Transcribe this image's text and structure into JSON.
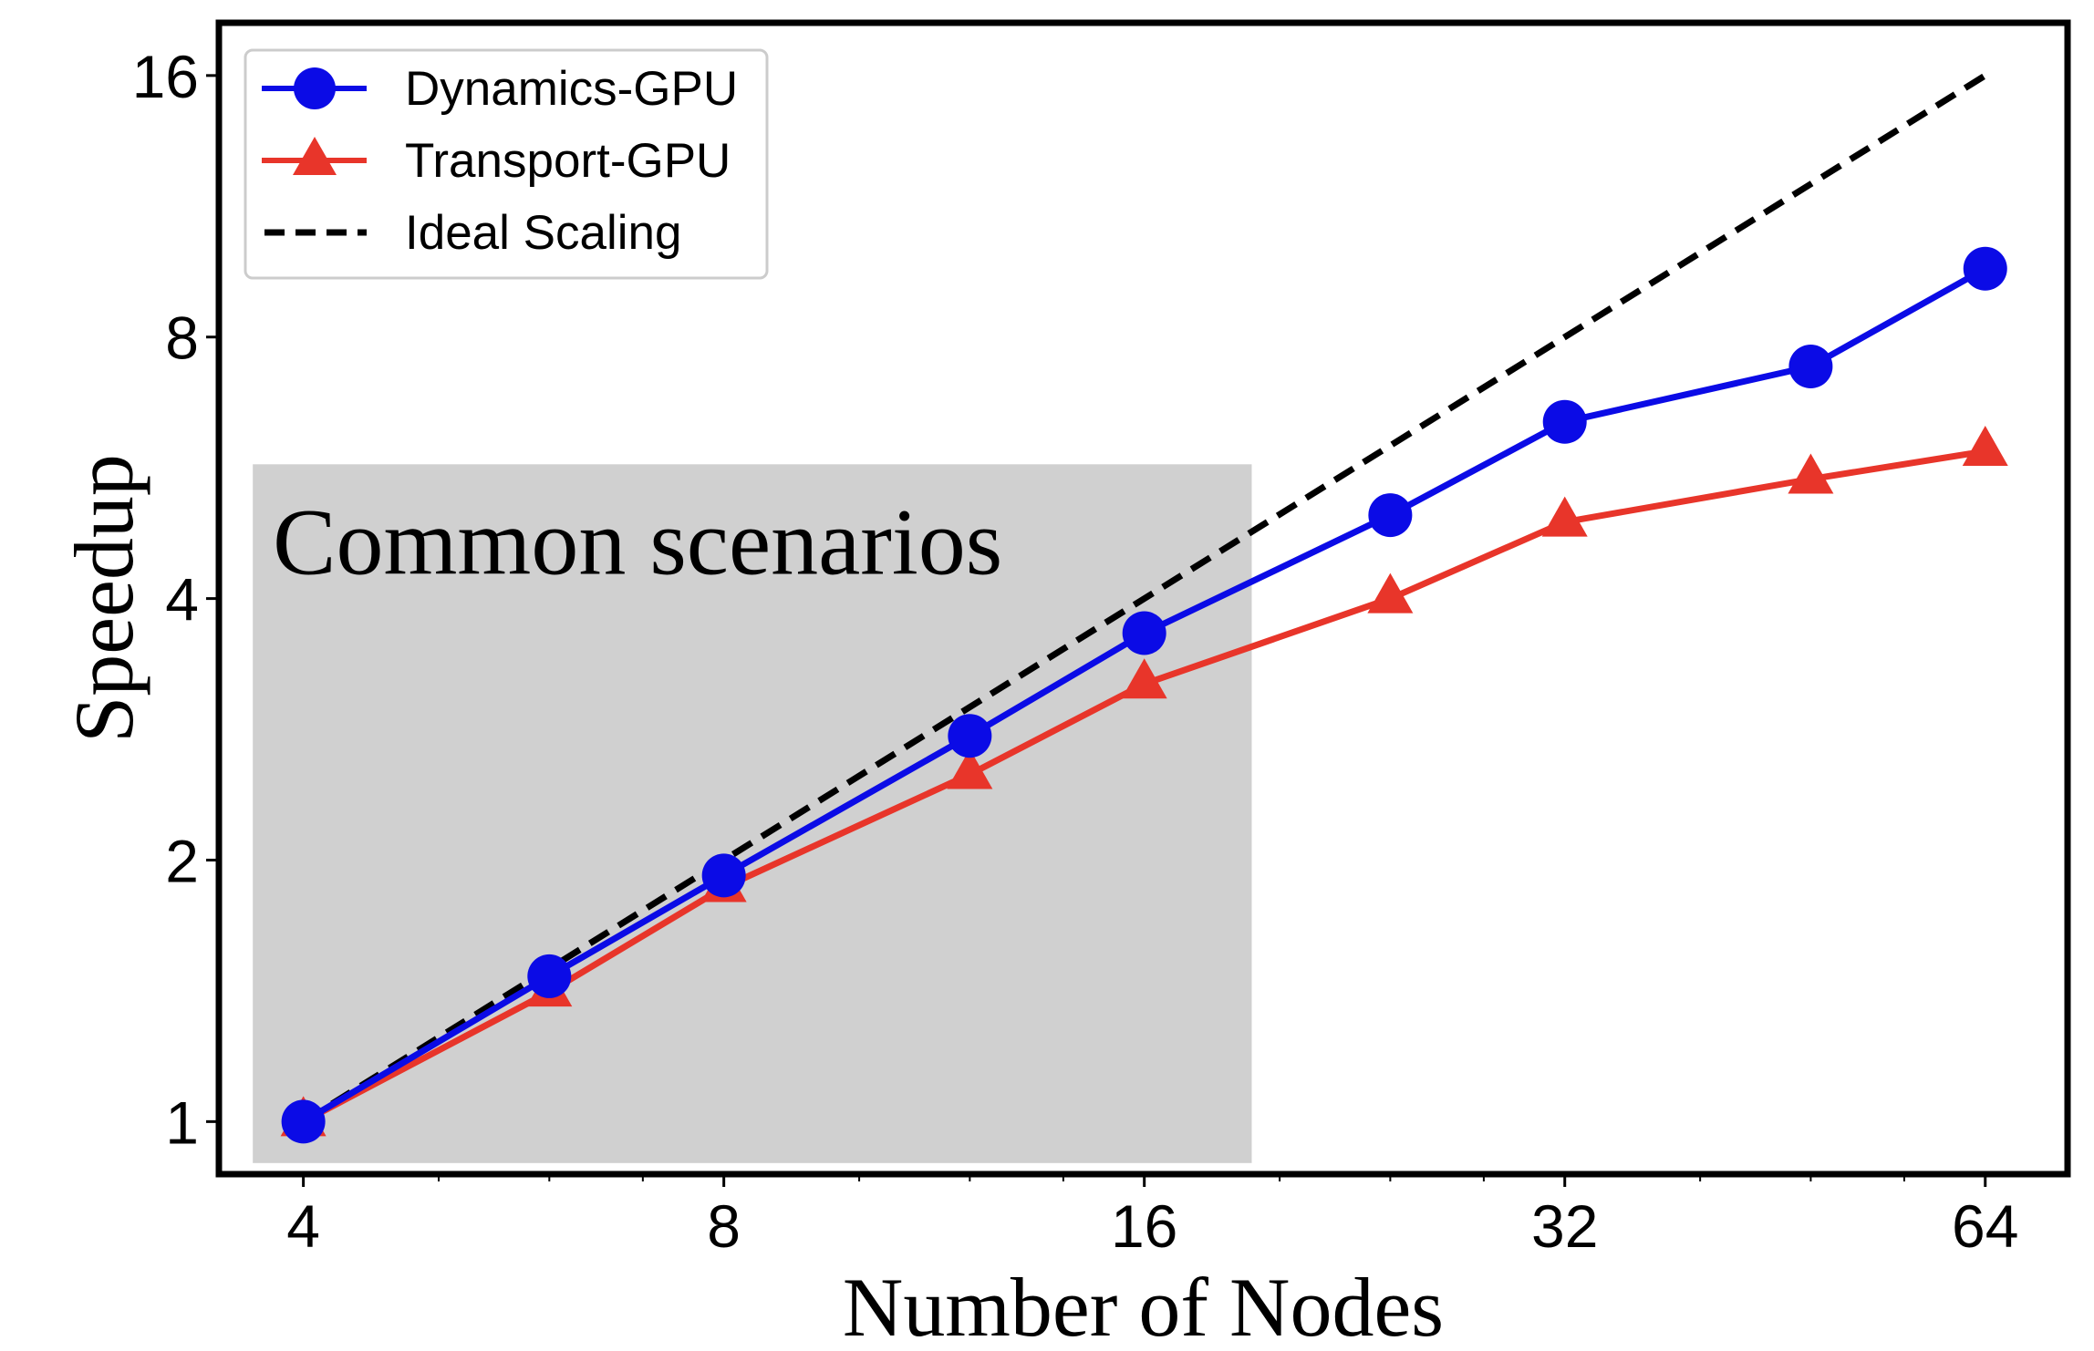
{
  "chart_data": {
    "type": "line",
    "xscale": "log2",
    "yscale": "log2",
    "xlabel": "Number of Nodes",
    "ylabel": "Speedup",
    "xlim": [
      3.48,
      73.3
    ],
    "ylim": [
      0.87,
      18.4
    ],
    "xticks": [
      4,
      8,
      16,
      32,
      64
    ],
    "xtick_labels": [
      "4",
      "8",
      "16",
      "32",
      "64"
    ],
    "yticks": [
      1,
      2,
      4,
      8,
      16
    ],
    "ytick_labels": [
      "1",
      "2",
      "4",
      "8",
      "16"
    ],
    "grid": false,
    "legend_position": "top-left",
    "x": [
      4,
      6,
      8,
      12,
      16,
      24,
      32,
      48,
      64
    ],
    "series": [
      {
        "name": "Dynamics-GPU",
        "color": "#0b0be6",
        "marker": "circle",
        "values": [
          1.0,
          1.47,
          1.92,
          2.78,
          3.65,
          4.99,
          6.39,
          7.4,
          9.59
        ]
      },
      {
        "name": "Transport-GPU",
        "color": "#e8352a",
        "marker": "triangle",
        "values": [
          1.0,
          1.41,
          1.86,
          2.51,
          3.19,
          4.0,
          4.9,
          5.49,
          5.91
        ]
      },
      {
        "name": "Ideal Scaling",
        "color": "#000000",
        "marker": "none",
        "dashed": true,
        "x": [
          4,
          64
        ],
        "values": [
          1,
          16
        ]
      }
    ],
    "annotation": {
      "text": "Common scenarios",
      "region_x": [
        3.68,
        19.1
      ],
      "region_y": [
        0.896,
        5.71
      ],
      "fill": "#d0d0d0"
    }
  }
}
